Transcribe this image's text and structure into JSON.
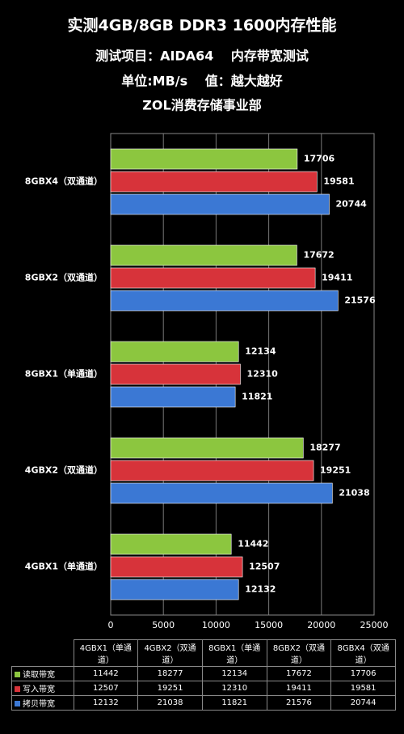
{
  "chart_data": {
    "type": "bar",
    "orientation": "horizontal",
    "title": "实测4GB/8GB DDR3 1600内存性能",
    "subtitles": [
      "测试项目：AIDA64　 内存带宽测试",
      "单位:MB/s　 值：越大越好",
      "ZOL消费存储事业部"
    ],
    "categories": [
      "4GBX1（单通道）",
      "4GBX2（双通道）",
      "8GBX1（单通道）",
      "8GBX2（双通道）",
      "8GBX4（双通道）"
    ],
    "series": [
      {
        "name": "读取带宽",
        "color": "#8cc63f",
        "values": [
          11442,
          18277,
          12134,
          17672,
          17706
        ]
      },
      {
        "name": "写入带宽",
        "color": "#d7333a",
        "values": [
          12507,
          19251,
          12310,
          19411,
          19581
        ]
      },
      {
        "name": "拷贝带宽",
        "color": "#3b78d4",
        "values": [
          12132,
          21038,
          11821,
          21576,
          20744
        ]
      }
    ],
    "xlim": [
      0,
      25000
    ],
    "xticks": [
      0,
      5000,
      10000,
      15000,
      20000,
      25000
    ],
    "grid": true
  }
}
